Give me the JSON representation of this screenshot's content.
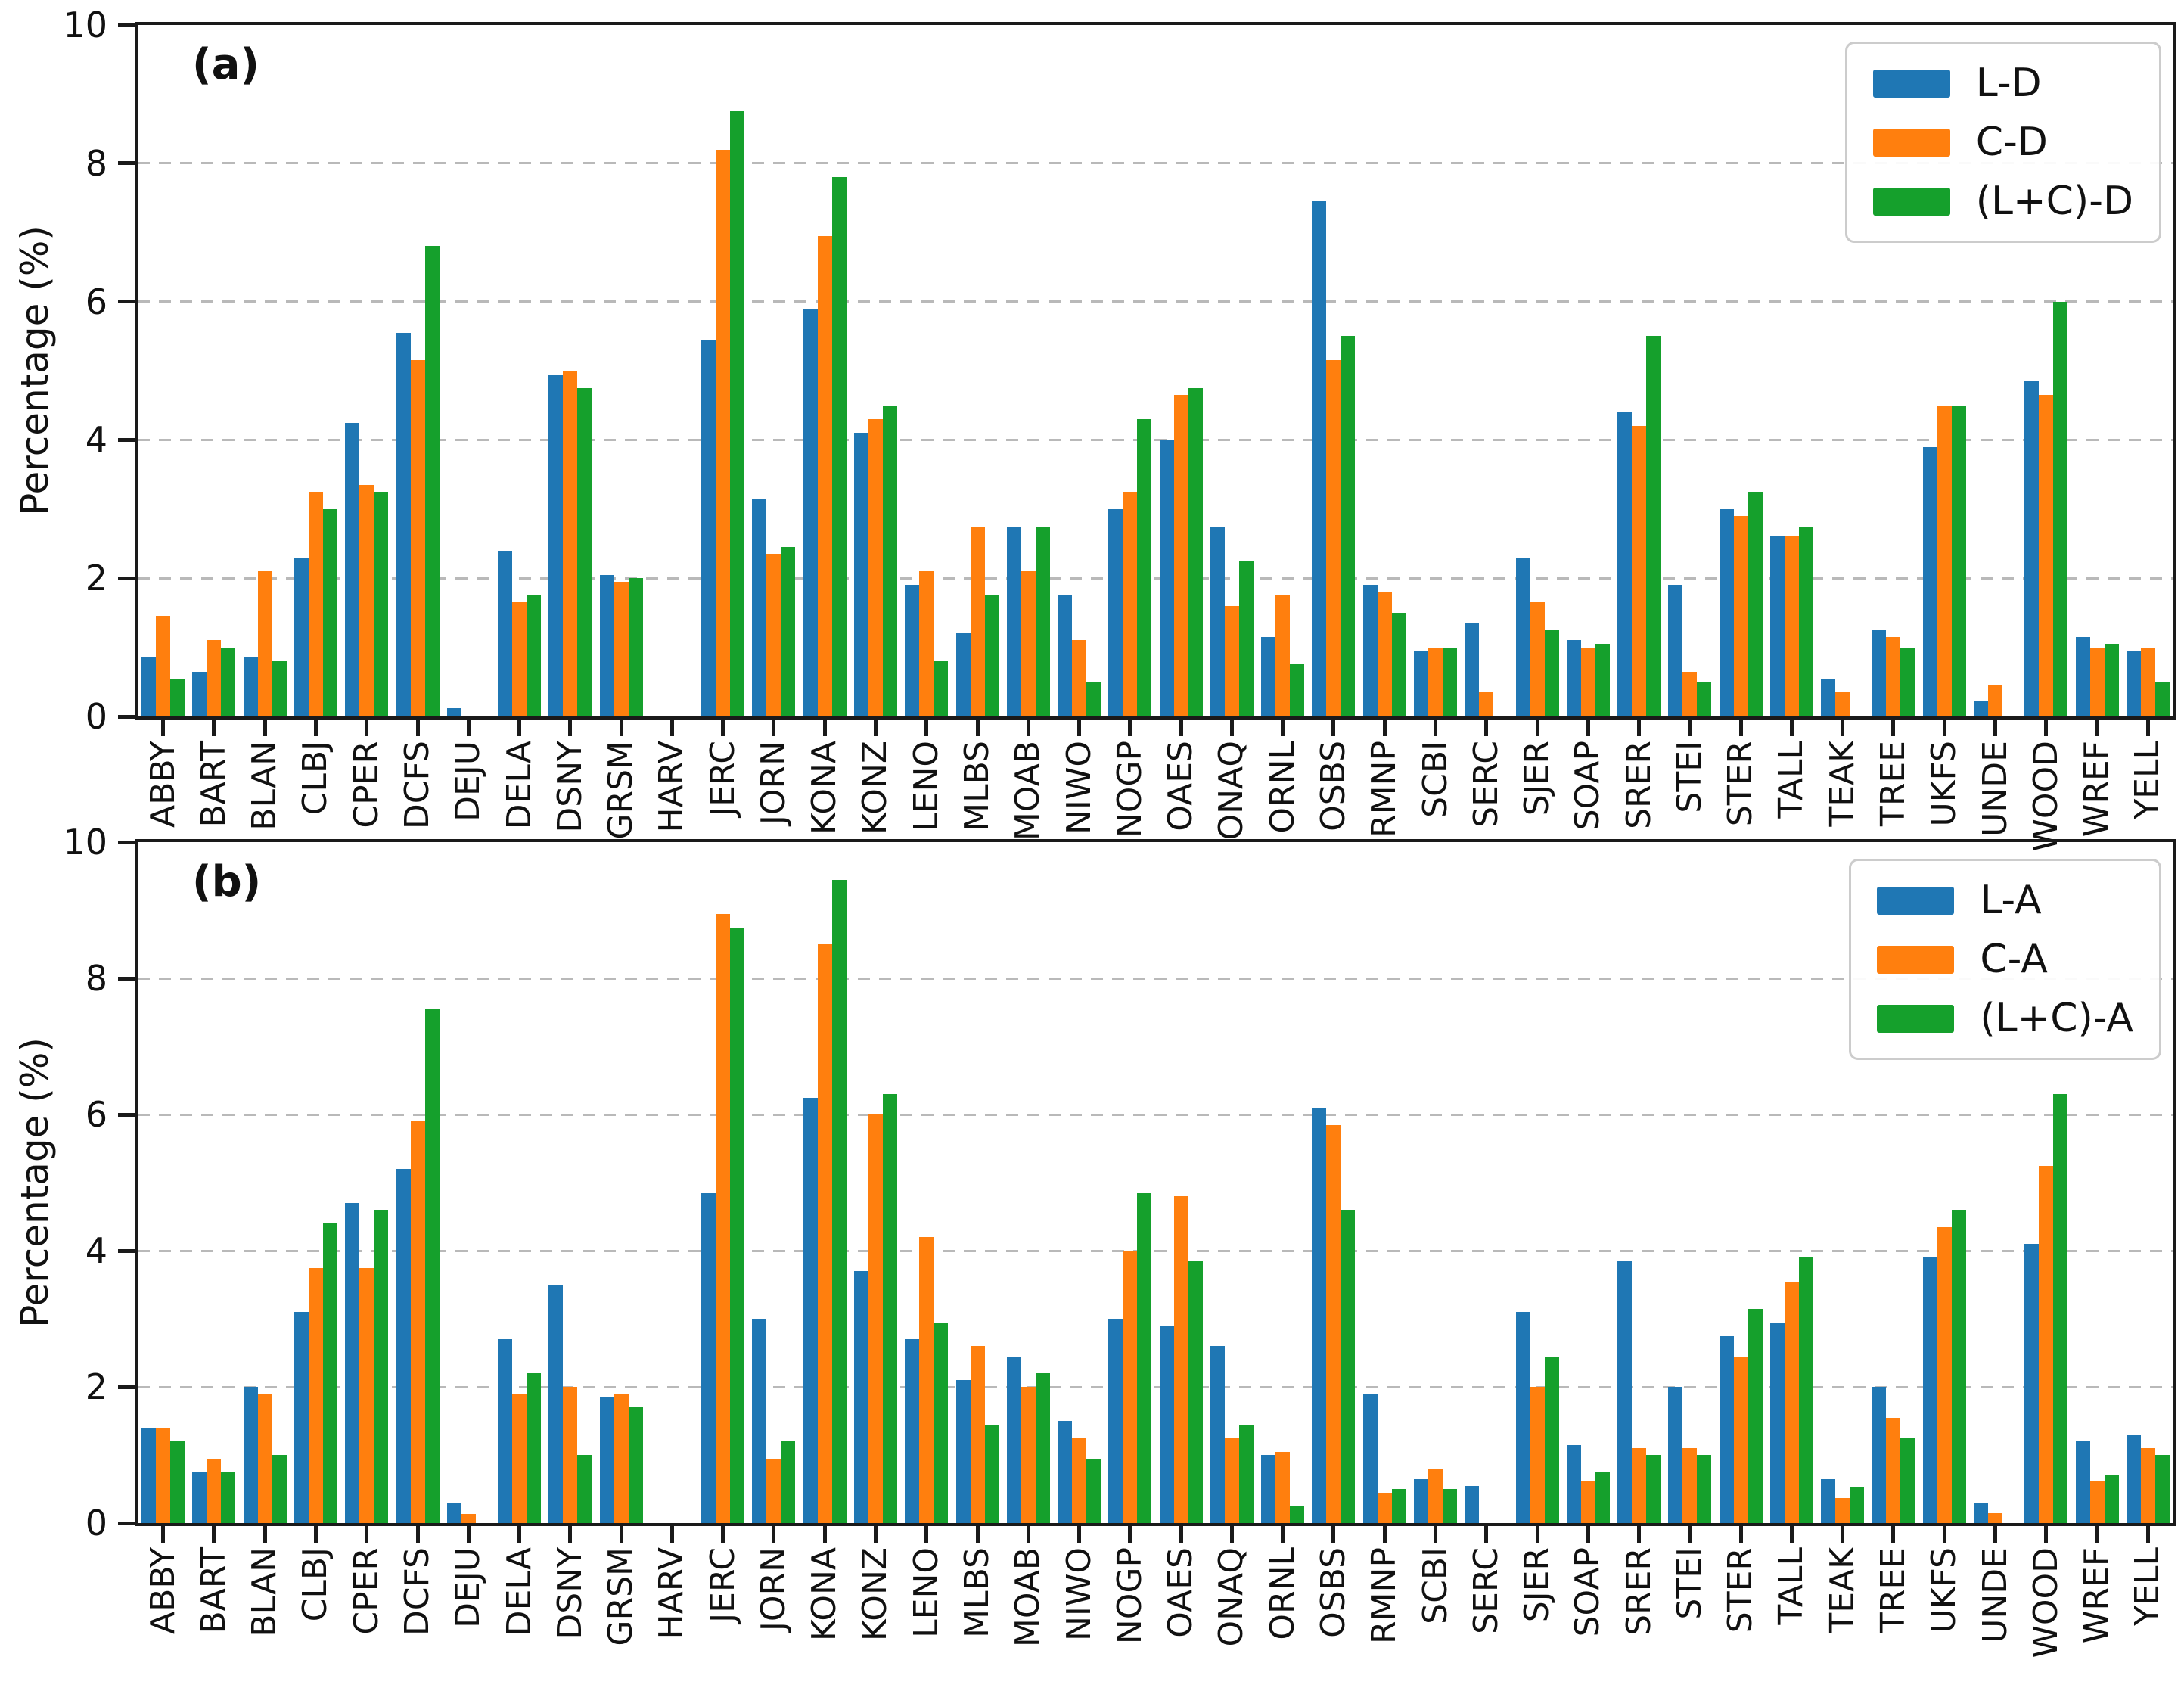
{
  "figure": {
    "ylabel": "Percentage (%)",
    "yticks": [
      0,
      2,
      4,
      6,
      8,
      10
    ],
    "gridline_values": [
      2,
      4,
      6,
      8
    ],
    "colors": {
      "blue": "#1f77b4",
      "orange": "#ff7f0e",
      "green": "#15a02c"
    },
    "panel_tags": [
      "(a)",
      "(b)"
    ]
  },
  "chart_data": [
    {
      "type": "bar",
      "title": "(a)",
      "xlabel": "",
      "ylabel": "Percentage (%)",
      "ylim": [
        0,
        10
      ],
      "yticks": [
        0,
        2,
        4,
        6,
        8,
        10
      ],
      "grid": "dashed horizontal at 2,4,6,8",
      "legend_position": "upper right",
      "categories": [
        "ABBY",
        "BART",
        "BLAN",
        "CLBJ",
        "CPER",
        "DCFS",
        "DEJU",
        "DELA",
        "DSNY",
        "GRSM",
        "HARV",
        "JERC",
        "JORN",
        "KONA",
        "KONZ",
        "LENO",
        "MLBS",
        "MOAB",
        "NIWO",
        "NOGP",
        "OAES",
        "ONAQ",
        "ORNL",
        "OSBS",
        "RMNP",
        "SCBI",
        "SERC",
        "SJER",
        "SOAP",
        "SRER",
        "STEI",
        "STER",
        "TALL",
        "TEAK",
        "TREE",
        "UKFS",
        "UNDE",
        "WOOD",
        "WREF",
        "YELL"
      ],
      "series": [
        {
          "name": "L-D",
          "color": "#1f77b4",
          "values": [
            0.85,
            0.65,
            0.85,
            2.3,
            4.25,
            5.55,
            0.12,
            2.4,
            4.95,
            2.05,
            0.0,
            5.45,
            3.15,
            5.9,
            4.1,
            1.9,
            1.2,
            2.75,
            1.75,
            3.0,
            4.0,
            2.75,
            1.15,
            7.45,
            1.9,
            0.95,
            1.35,
            2.3,
            1.1,
            4.4,
            1.9,
            3.0,
            2.6,
            0.55,
            1.25,
            3.9,
            0.22,
            4.85,
            1.15,
            0.95
          ]
        },
        {
          "name": "C-D",
          "color": "#ff7f0e",
          "values": [
            1.45,
            1.1,
            2.1,
            3.25,
            3.35,
            5.15,
            0.0,
            1.65,
            5.0,
            1.95,
            0.0,
            8.2,
            2.35,
            6.95,
            4.3,
            2.1,
            2.75,
            2.1,
            1.1,
            3.25,
            4.65,
            1.6,
            1.75,
            5.15,
            1.8,
            1.0,
            0.35,
            1.65,
            1.0,
            4.2,
            0.65,
            2.9,
            2.6,
            0.35,
            1.15,
            4.5,
            0.45,
            4.65,
            1.0,
            1.0
          ]
        },
        {
          "name": "(L+C)-D",
          "color": "#15a02c",
          "values": [
            0.55,
            1.0,
            0.8,
            3.0,
            3.25,
            6.8,
            0.0,
            1.75,
            4.75,
            2.0,
            0.0,
            8.75,
            2.45,
            7.8,
            4.5,
            0.8,
            1.75,
            2.75,
            0.5,
            4.3,
            4.75,
            2.25,
            0.75,
            5.5,
            1.5,
            1.0,
            0.0,
            1.25,
            1.05,
            5.5,
            0.5,
            3.25,
            2.75,
            0.0,
            1.0,
            4.5,
            0.0,
            6.0,
            1.05,
            0.5
          ]
        }
      ]
    },
    {
      "type": "bar",
      "title": "(b)",
      "xlabel": "",
      "ylabel": "Percentage (%)",
      "ylim": [
        0,
        10
      ],
      "yticks": [
        0,
        2,
        4,
        6,
        8,
        10
      ],
      "grid": "dashed horizontal at 2,4,6,8",
      "legend_position": "upper right",
      "categories": [
        "ABBY",
        "BART",
        "BLAN",
        "CLBJ",
        "CPER",
        "DCFS",
        "DEJU",
        "DELA",
        "DSNY",
        "GRSM",
        "HARV",
        "JERC",
        "JORN",
        "KONA",
        "KONZ",
        "LENO",
        "MLBS",
        "MOAB",
        "NIWO",
        "NOGP",
        "OAES",
        "ONAQ",
        "ORNL",
        "OSBS",
        "RMNP",
        "SCBI",
        "SERC",
        "SJER",
        "SOAP",
        "SRER",
        "STEI",
        "STER",
        "TALL",
        "TEAK",
        "TREE",
        "UKFS",
        "UNDE",
        "WOOD",
        "WREF",
        "YELL"
      ],
      "series": [
        {
          "name": "L-A",
          "color": "#1f77b4",
          "values": [
            1.4,
            0.75,
            2.0,
            3.1,
            4.7,
            5.2,
            0.3,
            2.7,
            3.5,
            1.85,
            0.0,
            4.85,
            3.0,
            6.25,
            3.7,
            2.7,
            2.1,
            2.45,
            1.5,
            3.0,
            2.9,
            2.6,
            1.0,
            6.1,
            1.9,
            0.65,
            0.55,
            3.1,
            1.15,
            3.85,
            2.0,
            2.75,
            2.95,
            0.65,
            2.0,
            3.9,
            0.3,
            4.1,
            1.2,
            1.3
          ]
        },
        {
          "name": "C-A",
          "color": "#ff7f0e",
          "values": [
            1.4,
            0.95,
            1.9,
            3.75,
            3.75,
            5.9,
            0.13,
            1.9,
            2.0,
            1.9,
            0.0,
            8.95,
            0.95,
            8.5,
            6.0,
            4.2,
            2.6,
            2.0,
            1.25,
            4.0,
            4.8,
            1.25,
            1.05,
            5.85,
            0.45,
            0.8,
            0.0,
            2.0,
            0.62,
            1.1,
            1.1,
            2.45,
            3.55,
            0.37,
            1.55,
            4.35,
            0.15,
            5.25,
            0.62,
            1.1
          ]
        },
        {
          "name": "(L+C)-A",
          "color": "#15a02c",
          "values": [
            1.2,
            0.75,
            1.0,
            4.4,
            4.6,
            7.55,
            0.0,
            2.2,
            1.0,
            1.7,
            0.0,
            8.75,
            1.2,
            9.45,
            6.3,
            2.95,
            1.45,
            2.2,
            0.95,
            4.85,
            3.85,
            1.45,
            0.25,
            4.6,
            0.5,
            0.5,
            0.0,
            2.45,
            0.75,
            1.0,
            1.0,
            3.15,
            3.9,
            0.53,
            1.25,
            4.6,
            0.0,
            6.3,
            0.7,
            1.0
          ]
        }
      ]
    }
  ]
}
